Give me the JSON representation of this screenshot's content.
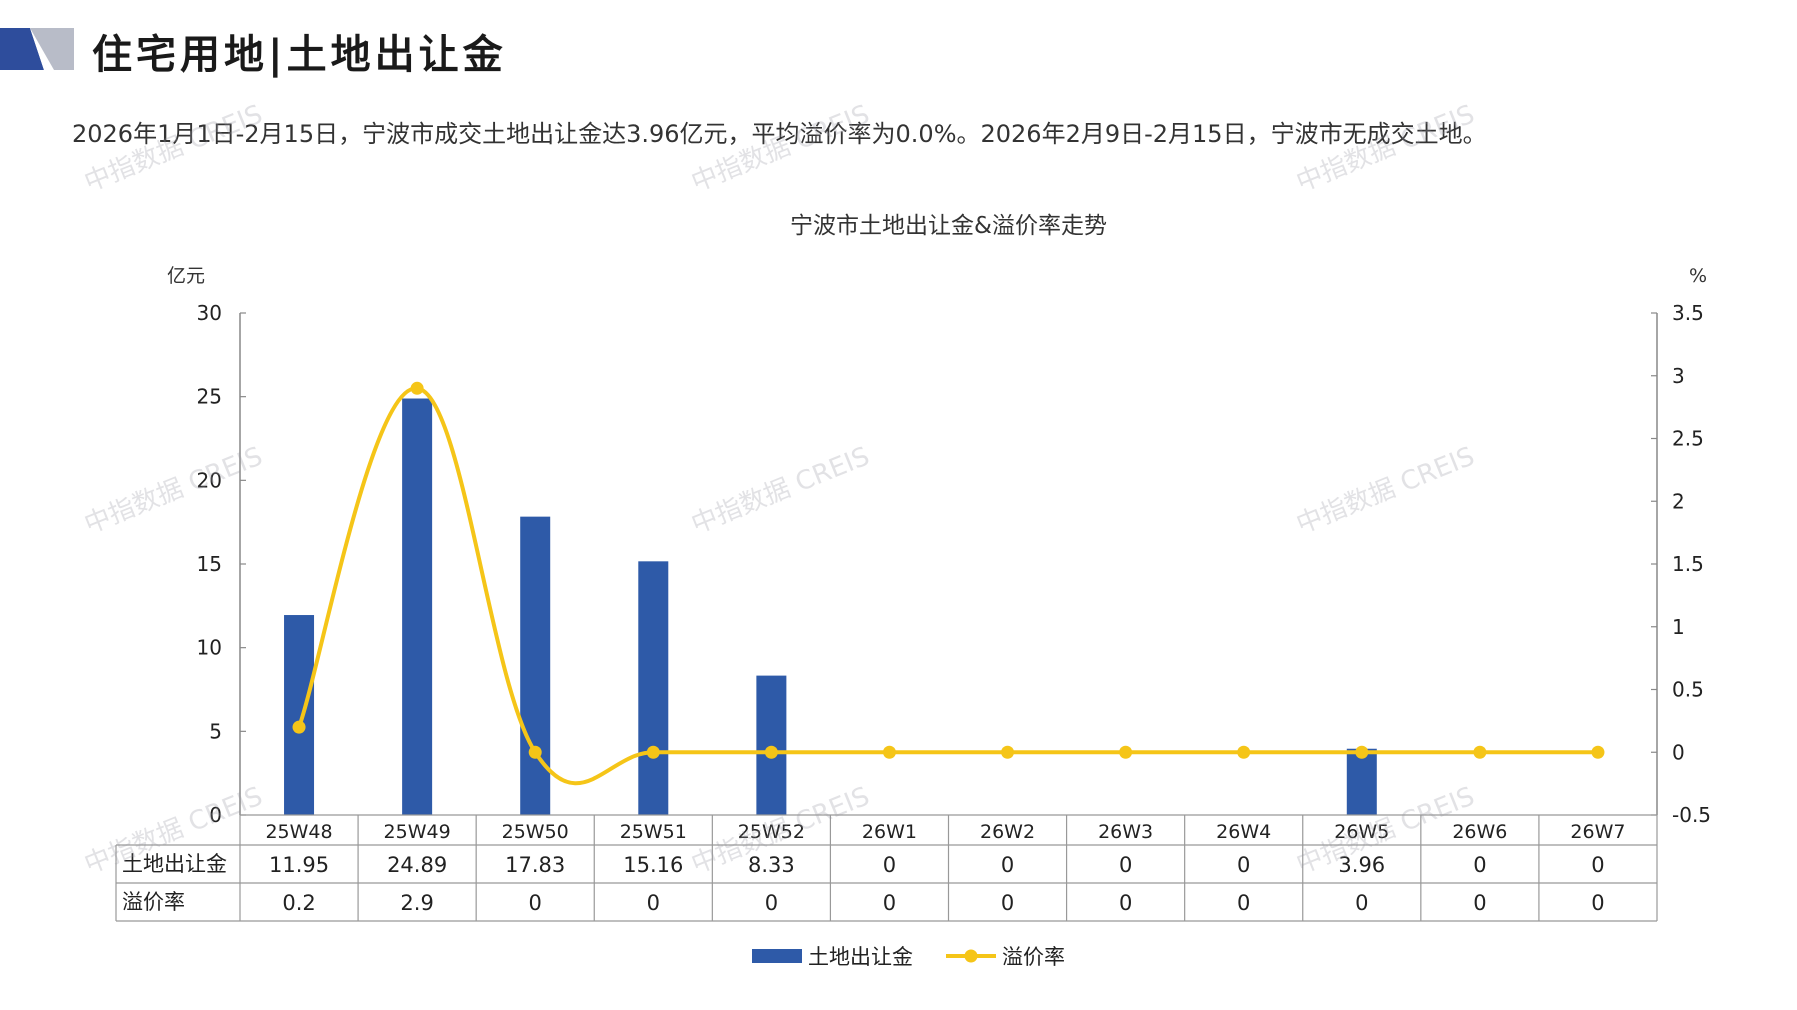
{
  "header": {
    "title": "住宅用地|土地出让金",
    "summary": "2026年1月1日-2月15日，宁波市成交土地出让金达3.96亿元，平均溢价率为0.0%。2026年2月9日-2月15日，宁波市无成交土地。"
  },
  "watermark": "中指数据 CREIS",
  "colors": {
    "bar": "#2e5aa8",
    "line": "#f5c518",
    "axis": "#888888",
    "grid": "#999999",
    "logo_dark": "#2e4d9c",
    "logo_light": "#b8bcc8"
  },
  "chart_data": {
    "type": "bar",
    "title": "宁波市土地出让金&溢价率走势",
    "ylabel_left": "亿元",
    "ylabel_right": "%",
    "ylim_left": [
      0,
      30
    ],
    "yticks_left": [
      "0",
      "5",
      "10",
      "15",
      "20",
      "25",
      "30"
    ],
    "ylim_right": [
      -0.5,
      3.5
    ],
    "yticks_right": [
      "-0.5",
      "0",
      "0.5",
      "1",
      "1.5",
      "2",
      "2.5",
      "3",
      "3.5"
    ],
    "categories": [
      "25W48",
      "25W49",
      "25W50",
      "25W51",
      "25W52",
      "26W1",
      "26W2",
      "26W3",
      "26W4",
      "26W5",
      "26W6",
      "26W7"
    ],
    "series": [
      {
        "name": "土地出让金",
        "type": "bar",
        "axis": "left",
        "values": [
          11.95,
          24.89,
          17.83,
          15.16,
          8.33,
          0,
          0,
          0,
          0,
          3.96,
          0,
          0
        ],
        "labels": [
          "11.95",
          "24.89",
          "17.83",
          "15.16",
          "8.33",
          "0",
          "0",
          "0",
          "0",
          "3.96",
          "0",
          "0"
        ]
      },
      {
        "name": "溢价率",
        "type": "line",
        "axis": "right",
        "values": [
          0.2,
          2.9,
          0,
          0,
          0,
          0,
          0,
          0,
          0,
          0,
          0,
          0
        ],
        "labels": [
          "0.2",
          "2.9",
          "0",
          "0",
          "0",
          "0",
          "0",
          "0",
          "0",
          "0",
          "0",
          "0"
        ]
      }
    ],
    "legend_position": "bottom-center"
  }
}
